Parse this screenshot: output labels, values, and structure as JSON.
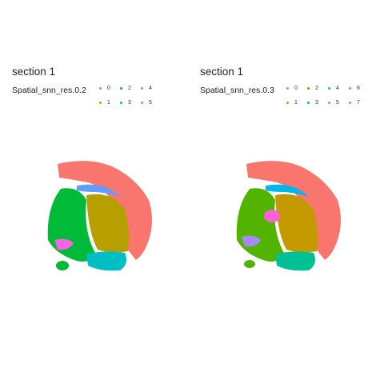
{
  "chart_data": [
    {
      "type": "scatter",
      "title": "section 1",
      "legend_title": "Spatial_snn_res.0.2",
      "legend_placement": "top-left",
      "grid": false,
      "clusters": [
        {
          "name": "0",
          "color": "#F8766D"
        },
        {
          "name": "1",
          "color": "#B79F00"
        },
        {
          "name": "2",
          "color": "#00BA38"
        },
        {
          "name": "3",
          "color": "#00BFC4"
        },
        {
          "name": "4",
          "color": "#619CFF"
        },
        {
          "name": "5",
          "color": "#F564E3"
        }
      ]
    },
    {
      "type": "scatter",
      "title": "section 1",
      "legend_title": "Spatial_snn_res.0.3",
      "legend_placement": "top-left",
      "grid": false,
      "clusters": [
        {
          "name": "0",
          "color": "#F8766D"
        },
        {
          "name": "1",
          "color": "#C49A00"
        },
        {
          "name": "2",
          "color": "#53B400"
        },
        {
          "name": "3",
          "color": "#00C094"
        },
        {
          "name": "4",
          "color": "#00B6EB"
        },
        {
          "name": "5",
          "color": "#A58AFF"
        },
        {
          "name": "6",
          "color": "#FB61D7"
        },
        {
          "name": "7",
          "color": "#F8766D"
        }
      ]
    }
  ]
}
